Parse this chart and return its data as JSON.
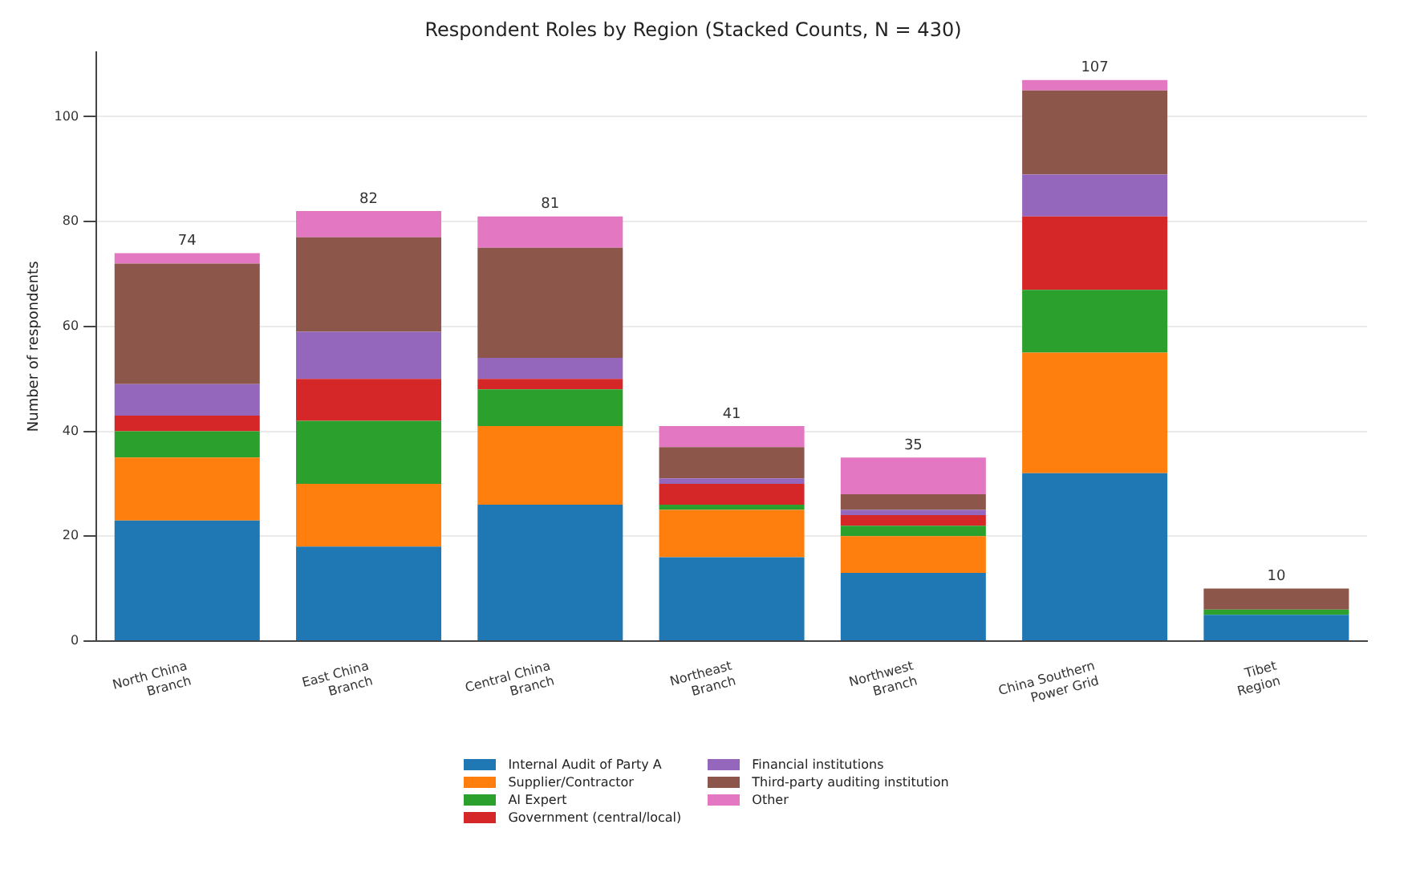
{
  "chart_data": {
    "type": "bar",
    "title": "Respondent Roles by Region (Stacked Counts, N = 430)",
    "ylabel": "Number of respondents",
    "categories": [
      "North China Branch",
      "East China Branch",
      "Central China Branch",
      "Northeast Branch",
      "Northwest Branch",
      "China Southern Power Grid",
      "Tibet Region"
    ],
    "stacked": true,
    "ylim": [
      0,
      112.35
    ],
    "yticks": [
      0,
      20,
      40,
      60,
      80,
      100
    ],
    "grid": "y",
    "legend": "bottom",
    "totals": [
      "74",
      "82",
      "81",
      "41",
      "35",
      "107",
      "10"
    ],
    "series": [
      {
        "name": "Internal Audit of Party A",
        "color": "#1f77b4",
        "values": [
          23,
          18,
          26,
          16,
          13,
          32,
          5
        ]
      },
      {
        "name": "Supplier/Contractor",
        "color": "#ff7f0e",
        "values": [
          12,
          12,
          15,
          9,
          7,
          23,
          0
        ]
      },
      {
        "name": "AI Expert",
        "color": "#2ca02c",
        "values": [
          5,
          12,
          7,
          1,
          2,
          12,
          1
        ]
      },
      {
        "name": "Government (central/local)",
        "color": "#d62728",
        "values": [
          3,
          8,
          2,
          4,
          2,
          14,
          0
        ]
      },
      {
        "name": "Financial institutions",
        "color": "#9467bd",
        "values": [
          6,
          9,
          4,
          1,
          1,
          8,
          0
        ]
      },
      {
        "name": "Third-party auditing institution",
        "color": "#8c564b",
        "values": [
          23,
          18,
          21,
          6,
          3,
          16,
          4
        ]
      },
      {
        "name": "Other",
        "color": "#e377c2",
        "values": [
          2,
          5,
          6,
          4,
          7,
          2,
          0
        ]
      }
    ]
  }
}
